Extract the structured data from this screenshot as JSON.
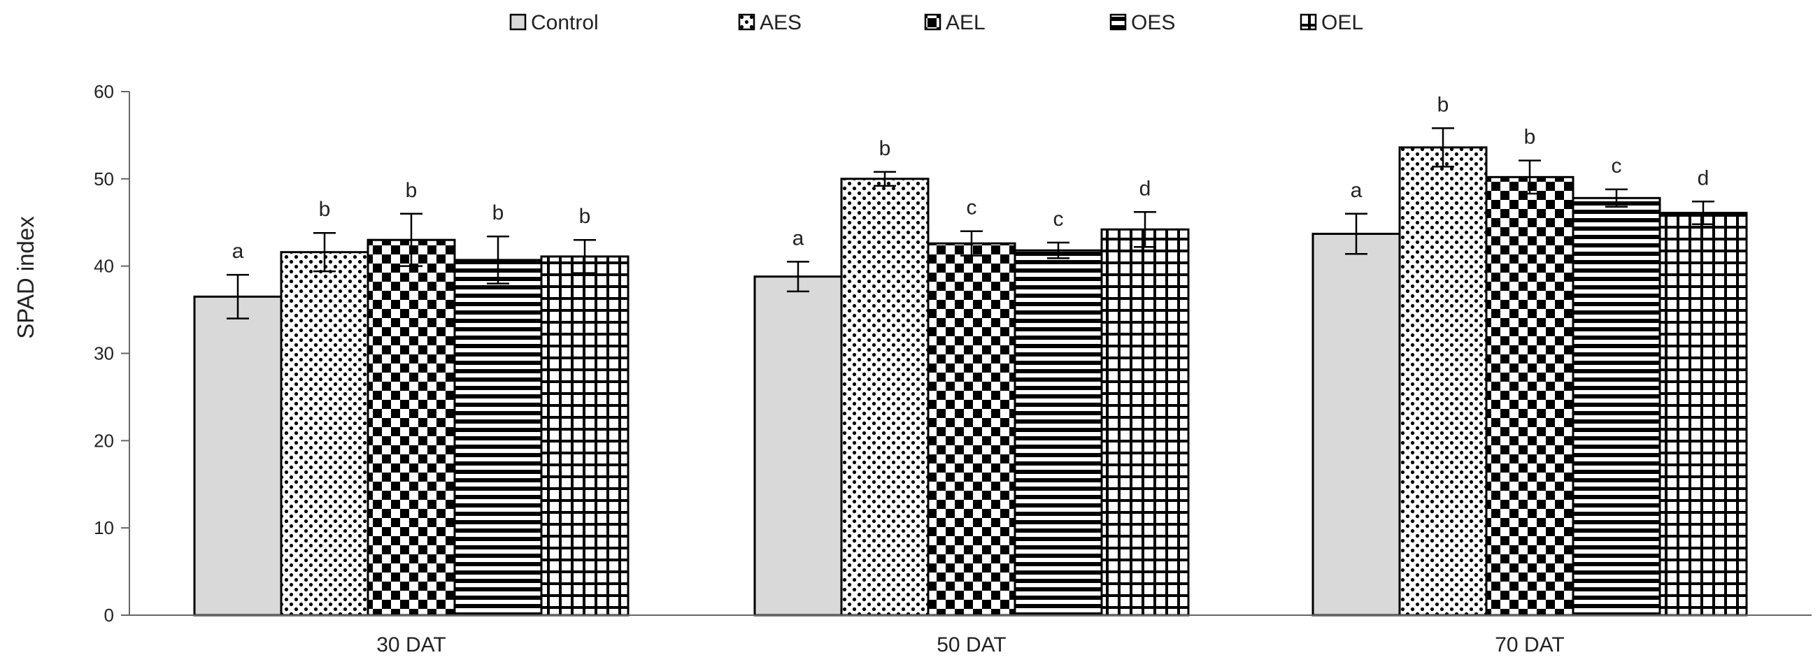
{
  "chart_data": {
    "type": "bar",
    "title": "",
    "xlabel": "",
    "ylabel": "SPAD index",
    "ylim": [
      0,
      60
    ],
    "yticks": [
      0,
      10,
      20,
      30,
      40,
      50,
      60
    ],
    "grid": false,
    "legend_position": "top",
    "categories": [
      "30 DAT",
      "50 DAT",
      "70 DAT"
    ],
    "series": [
      {
        "name": "Control",
        "pattern": "solid-gray",
        "fill": "#d9d9d9",
        "values": [
          36.5,
          38.8,
          43.7
        ],
        "errors": [
          2.5,
          1.7,
          2.3
        ],
        "letters": [
          "a",
          "a",
          "a"
        ]
      },
      {
        "name": "AES",
        "pattern": "dots",
        "values": [
          41.6,
          50.0,
          53.6
        ],
        "errors": [
          2.2,
          0.8,
          2.2
        ],
        "letters": [
          "b",
          "b",
          "b"
        ]
      },
      {
        "name": "AEL",
        "pattern": "checkerboard",
        "values": [
          43.0,
          42.6,
          50.2
        ],
        "errors": [
          3.0,
          1.4,
          1.9
        ],
        "letters": [
          "b",
          "c",
          "b"
        ]
      },
      {
        "name": "OES",
        "pattern": "horizontal-stripes",
        "values": [
          40.7,
          41.8,
          47.8
        ],
        "errors": [
          2.7,
          0.9,
          1.0
        ],
        "letters": [
          "b",
          "c",
          "c"
        ]
      },
      {
        "name": "OEL",
        "pattern": "grid",
        "values": [
          41.1,
          44.2,
          46.1
        ],
        "errors": [
          1.9,
          2.0,
          1.3
        ],
        "letters": [
          "b",
          "d",
          "d"
        ]
      }
    ]
  },
  "colors": {
    "axis": "#666666",
    "outline": "#000000",
    "control_fill": "#d9d9d9"
  }
}
